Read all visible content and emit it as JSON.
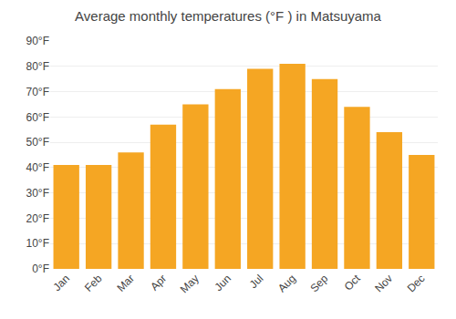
{
  "chart_data": {
    "type": "bar",
    "title": "Average monthly temperatures (°F ) in Matsuyama",
    "categories": [
      "Jan",
      "Feb",
      "Mar",
      "Apr",
      "May",
      "Jun",
      "Jul",
      "Aug",
      "Sep",
      "Oct",
      "Nov",
      "Dec"
    ],
    "values": [
      41,
      41,
      46,
      57,
      65,
      71,
      79,
      81,
      75,
      64,
      54,
      45
    ],
    "color": "#F5A623",
    "ylim": [
      0,
      90
    ],
    "yticks": [
      {
        "value": 0,
        "label": "0°F"
      },
      {
        "value": 10,
        "label": "10°F"
      },
      {
        "value": 20,
        "label": "20°F"
      },
      {
        "value": 30,
        "label": "30°F"
      },
      {
        "value": 40,
        "label": "40°F"
      },
      {
        "value": 50,
        "label": "50°F"
      },
      {
        "value": 60,
        "label": "60°F"
      },
      {
        "value": 70,
        "label": "70°F"
      },
      {
        "value": 80,
        "label": "80°F"
      },
      {
        "value": 90,
        "label": "90°F"
      }
    ],
    "grid": true
  }
}
